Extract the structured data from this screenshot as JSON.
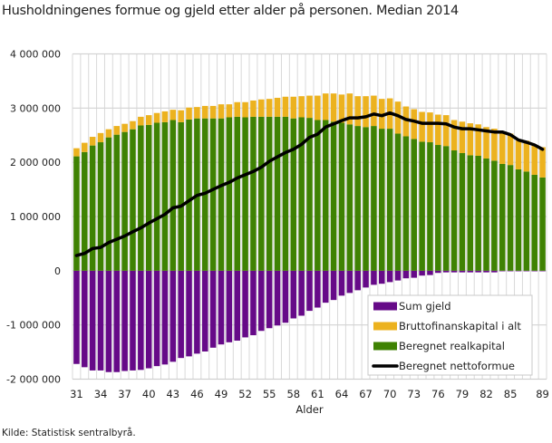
{
  "chart_data": {
    "type": "bar",
    "stacked": true,
    "title": "Husholdningenes formue og gjeld etter alder på personen. Median 2014",
    "xlabel": "Alder",
    "ylabel": "",
    "ylim": [
      -2000000,
      4000000
    ],
    "yticks": [
      -2000000,
      -1000000,
      0,
      1000000,
      2000000,
      3000000,
      4000000
    ],
    "ytick_labels": [
      "-2 000 000",
      "-1 000 000",
      "0",
      "1 000 000",
      "2 000 000",
      "3 000 000",
      "4 000 000"
    ],
    "xtick_labels": [
      "31",
      "34",
      "37",
      "40",
      "43",
      "46",
      "49",
      "52",
      "55",
      "58",
      "61",
      "64",
      "67",
      "70",
      "73",
      "76",
      "79",
      "82",
      "85",
      "89"
    ],
    "grid": true,
    "legend_position": "bottom-right",
    "categories": [
      31,
      32,
      33,
      34,
      35,
      36,
      37,
      38,
      39,
      40,
      41,
      42,
      43,
      44,
      45,
      46,
      47,
      48,
      49,
      50,
      51,
      52,
      53,
      54,
      55,
      56,
      57,
      58,
      59,
      60,
      61,
      62,
      63,
      64,
      65,
      66,
      67,
      68,
      69,
      70,
      71,
      72,
      73,
      74,
      75,
      76,
      77,
      78,
      79,
      80,
      81,
      82,
      83,
      84,
      85,
      86,
      87,
      88,
      89
    ],
    "series": [
      {
        "name": "Sum gjeld",
        "kind": "bar",
        "color": "#660a88",
        "values": [
          -1720000,
          -1780000,
          -1840000,
          -1840000,
          -1870000,
          -1870000,
          -1850000,
          -1840000,
          -1830000,
          -1800000,
          -1760000,
          -1730000,
          -1680000,
          -1610000,
          -1580000,
          -1530000,
          -1490000,
          -1420000,
          -1360000,
          -1320000,
          -1290000,
          -1230000,
          -1190000,
          -1110000,
          -1060000,
          -1010000,
          -960000,
          -880000,
          -830000,
          -740000,
          -680000,
          -590000,
          -540000,
          -460000,
          -410000,
          -360000,
          -310000,
          -260000,
          -240000,
          -210000,
          -180000,
          -140000,
          -130000,
          -90000,
          -80000,
          -40000,
          -30000,
          -30000,
          -30000,
          -30000,
          -30000,
          -30000,
          -30000,
          -10000,
          -10000,
          -10000,
          -10000,
          -10000,
          -10000
        ]
      },
      {
        "name": "Bruttofinanskapital i alt",
        "kind": "bar",
        "color": "#ecb21f",
        "values": [
          150000,
          170000,
          160000,
          170000,
          150000,
          160000,
          150000,
          150000,
          160000,
          180000,
          180000,
          200000,
          190000,
          220000,
          220000,
          210000,
          230000,
          230000,
          260000,
          240000,
          270000,
          280000,
          300000,
          320000,
          330000,
          350000,
          370000,
          400000,
          390000,
          410000,
          450000,
          490000,
          520000,
          520000,
          570000,
          550000,
          570000,
          560000,
          550000,
          560000,
          590000,
          550000,
          550000,
          550000,
          550000,
          560000,
          570000,
          560000,
          580000,
          590000,
          580000,
          580000,
          590000,
          580000,
          580000,
          530000,
          570000,
          550000,
          560000
        ]
      },
      {
        "name": "Beregnet realkapital",
        "kind": "bar",
        "color": "#3f8203",
        "values": [
          2110000,
          2190000,
          2310000,
          2370000,
          2460000,
          2510000,
          2560000,
          2610000,
          2680000,
          2690000,
          2730000,
          2740000,
          2780000,
          2740000,
          2790000,
          2810000,
          2810000,
          2810000,
          2810000,
          2830000,
          2840000,
          2830000,
          2840000,
          2840000,
          2840000,
          2840000,
          2840000,
          2810000,
          2830000,
          2820000,
          2780000,
          2780000,
          2750000,
          2730000,
          2700000,
          2670000,
          2650000,
          2670000,
          2620000,
          2620000,
          2530000,
          2480000,
          2430000,
          2380000,
          2370000,
          2320000,
          2300000,
          2220000,
          2170000,
          2130000,
          2120000,
          2070000,
          2030000,
          1970000,
          1950000,
          1870000,
          1830000,
          1770000,
          1720000
        ]
      },
      {
        "name": "Beregnet nettoformue",
        "kind": "line",
        "color": "#000000",
        "values": [
          280000,
          320000,
          410000,
          430000,
          520000,
          580000,
          640000,
          720000,
          790000,
          880000,
          960000,
          1040000,
          1160000,
          1190000,
          1290000,
          1390000,
          1430000,
          1500000,
          1570000,
          1630000,
          1710000,
          1770000,
          1830000,
          1910000,
          2020000,
          2100000,
          2180000,
          2240000,
          2330000,
          2460000,
          2520000,
          2650000,
          2710000,
          2770000,
          2820000,
          2820000,
          2840000,
          2890000,
          2860000,
          2910000,
          2860000,
          2790000,
          2760000,
          2720000,
          2720000,
          2720000,
          2710000,
          2650000,
          2620000,
          2620000,
          2600000,
          2580000,
          2560000,
          2560000,
          2510000,
          2410000,
          2370000,
          2320000,
          2240000
        ]
      }
    ]
  },
  "source": "Kilde: Statistisk sentralbyrå."
}
